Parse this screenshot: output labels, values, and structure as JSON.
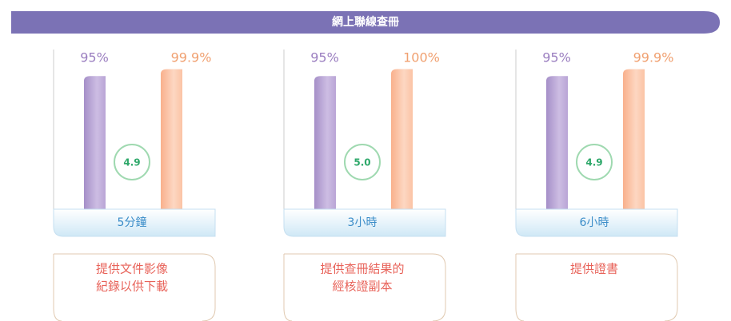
{
  "title": "網上聯線查冊",
  "panels": [
    {
      "values": [
        95,
        99.9
      ],
      "value_labels": [
        "95%",
        "99.9%"
      ],
      "rating": "4.9",
      "time": "5分鐘",
      "description": [
        "提供文件影像",
        "紀錄以供下載"
      ]
    },
    {
      "values": [
        95,
        100
      ],
      "value_labels": [
        "95%",
        "100%"
      ],
      "rating": "5.0",
      "time": "3小時",
      "description": [
        "提供查冊結果的",
        "經核證副本"
      ]
    },
    {
      "values": [
        95,
        99.9
      ],
      "value_labels": [
        "95%",
        "99.9%"
      ],
      "rating": "4.9",
      "time": "6小時",
      "description": [
        "提供證書"
      ]
    }
  ]
}
